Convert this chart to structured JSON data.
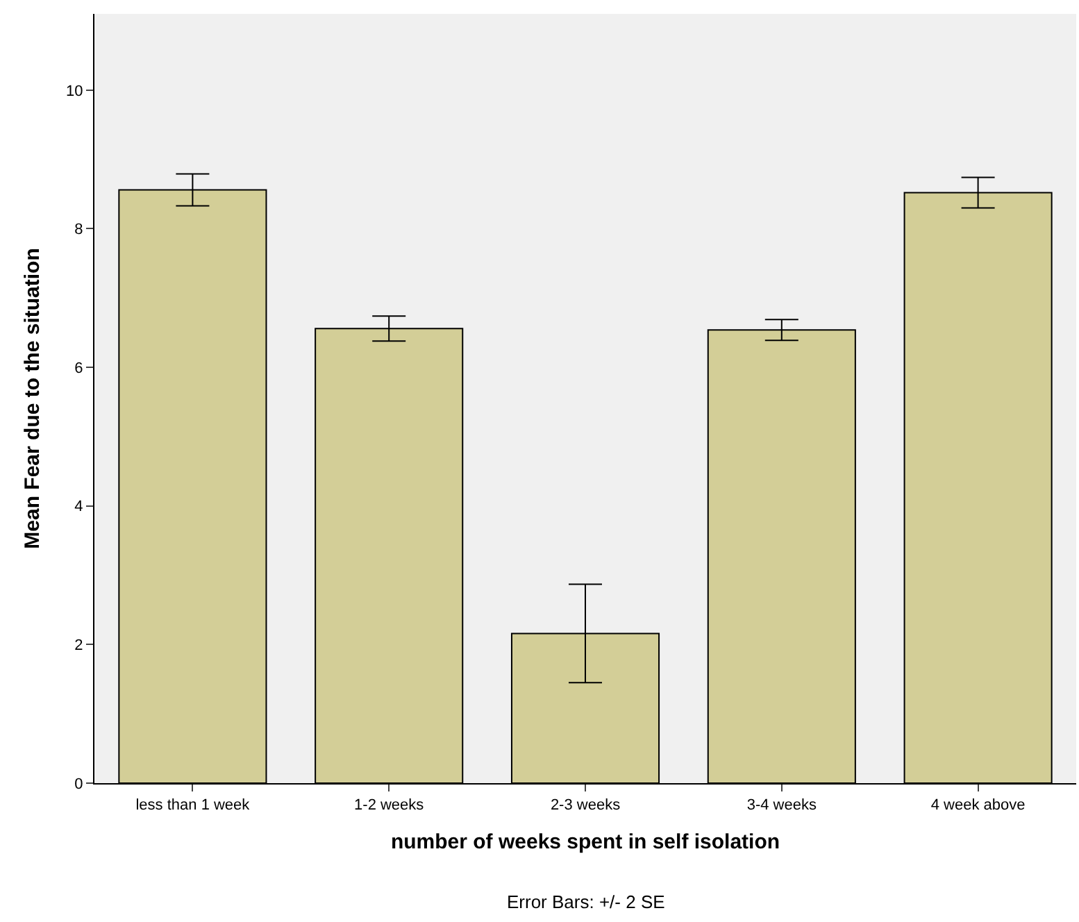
{
  "chart_data": {
    "type": "bar",
    "xlabel": "number of weeks spent in self isolation",
    "ylabel": "Mean Fear due to the situation",
    "categories": [
      "less than 1 week",
      "1-2 weeks",
      "2-3 weeks",
      "3-4 weeks",
      "4 week above"
    ],
    "values": [
      8.56,
      6.56,
      2.16,
      6.54,
      8.52
    ],
    "errors": [
      0.23,
      0.18,
      0.71,
      0.15,
      0.22
    ],
    "color": "#d3ce97",
    "ylim": [
      0,
      11.1
    ],
    "yticks": [
      0,
      2,
      4,
      6,
      8,
      10
    ],
    "grid": false,
    "annotations": [
      "Error Bars: +/- 2 SE"
    ]
  }
}
